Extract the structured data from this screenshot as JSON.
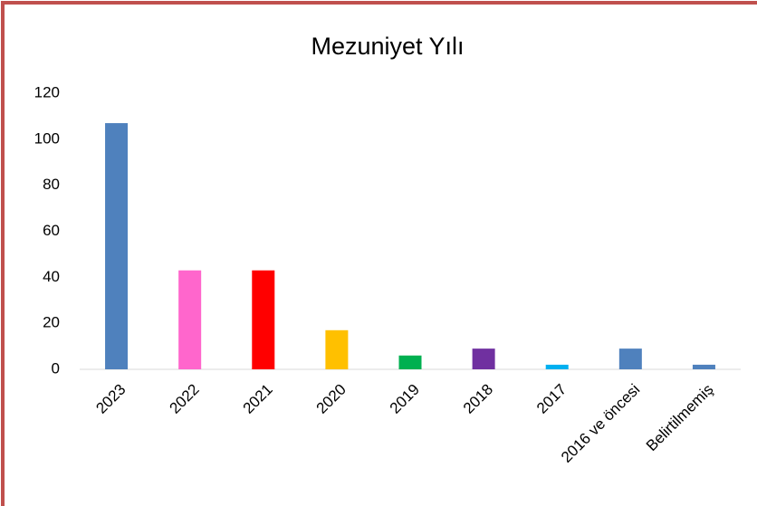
{
  "chart_data": {
    "type": "bar",
    "title": "Mezuniyet Yılı",
    "categories": [
      "2023",
      "2022",
      "2021",
      "2020",
      "2019",
      "2018",
      "2017",
      "2016 ve öncesi",
      "Belirtilmemiş"
    ],
    "values": [
      107,
      43,
      43,
      17,
      6,
      9,
      2,
      9,
      2
    ],
    "colors": [
      "#4f81bd",
      "#ff66cc",
      "#ff0000",
      "#ffc000",
      "#00b050",
      "#7030a0",
      "#00b0f0",
      "#4f81bd",
      "#4f81bd"
    ],
    "ylim": [
      0,
      120
    ],
    "yticks": [
      0,
      20,
      40,
      60,
      80,
      100,
      120
    ],
    "grid": false
  }
}
